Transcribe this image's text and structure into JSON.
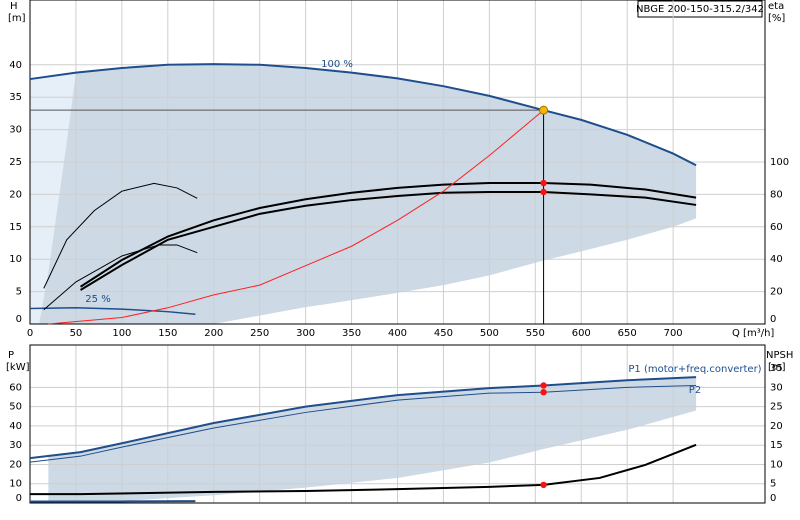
{
  "chart_data": [
    {
      "type": "line",
      "title": "NBGE 200-150-315.2/342",
      "y_label": "H",
      "y_unit": "[m]",
      "y2_label": "eta",
      "y2_unit": "[%]",
      "x_label": "Q [m³/h]",
      "xlim": [
        0,
        800
      ],
      "xticks": [
        0,
        50,
        100,
        150,
        200,
        250,
        300,
        350,
        400,
        450,
        500,
        550,
        600,
        650,
        700
      ],
      "ylim": [
        0,
        50
      ],
      "yticks": [
        0,
        5,
        10,
        15,
        20,
        25,
        30,
        35,
        40
      ],
      "y2lim": [
        0,
        200
      ],
      "y2ticks": [
        0,
        20,
        40,
        60,
        80,
        100
      ],
      "grid": true,
      "duty_point": {
        "x": 559,
        "y": 33,
        "color": "#f5b800"
      },
      "bands": [
        {
          "color": "#e6eef7",
          "x": [
            0,
            50
          ],
          "upper": [
            37.8,
            38.8
          ],
          "lower": [
            0,
            0
          ]
        },
        {
          "color": "#cdd9e5",
          "x": [
            10,
            20,
            30,
            40,
            50,
            100,
            200,
            300,
            320,
            400,
            450,
            500,
            559,
            600,
            650,
            700,
            725
          ],
          "upper": [
            0,
            8,
            18,
            28,
            38.8,
            39.5,
            40.1,
            39.5,
            39.3,
            37.9,
            36.7,
            35.2,
            33,
            31.5,
            29.2,
            26.3,
            24.5
          ],
          "lower": [
            0,
            0,
            0,
            0,
            0,
            0,
            0,
            2.6,
            3,
            4.8,
            6,
            7.5,
            9.8,
            11.2,
            13,
            15,
            16.3
          ]
        }
      ],
      "series": [
        {
          "name": "100 %",
          "color": "#1f4e8c",
          "width": 2,
          "marked": false,
          "x": [
            0,
            50,
            100,
            150,
            200,
            250,
            300,
            350,
            400,
            450,
            500,
            559,
            600,
            650,
            700,
            725
          ],
          "values": [
            37.8,
            38.8,
            39.5,
            40,
            40.1,
            40,
            39.5,
            38.8,
            37.9,
            36.7,
            35.2,
            33,
            31.5,
            29.2,
            26.3,
            24.5
          ]
        },
        {
          "name": "25 %",
          "color": "#1f4e8c",
          "width": 1.5,
          "marked": false,
          "x": [
            0,
            50,
            100,
            150,
            180
          ],
          "values": [
            2.4,
            2.5,
            2.3,
            1.9,
            1.5
          ]
        },
        {
          "color": "#000000",
          "width": 2,
          "axis": "y2",
          "marked": true,
          "x": [
            55,
            100,
            150,
            200,
            250,
            300,
            350,
            400,
            450,
            500,
            559,
            610,
            670,
            725
          ],
          "values": [
            23,
            39.5,
            54,
            64,
            71.6,
            77,
            81,
            84,
            86,
            87,
            87,
            86,
            83,
            78
          ]
        },
        {
          "color": "#000000",
          "width": 2,
          "axis": "y2",
          "marked": true,
          "x": [
            55,
            100,
            150,
            200,
            250,
            300,
            350,
            400,
            450,
            500,
            559,
            610,
            670,
            725
          ],
          "values": [
            21,
            36.4,
            52,
            60,
            68,
            73,
            76.5,
            79,
            81,
            81.5,
            81.5,
            80,
            78,
            73.5
          ]
        },
        {
          "color": "#000000",
          "width": 1,
          "marked": false,
          "x": [
            15,
            40,
            70,
            100,
            135,
            160,
            182
          ],
          "values": [
            5.5,
            13,
            17.5,
            20.5,
            21.7,
            21,
            19.4
          ]
        },
        {
          "color": "#000000",
          "width": 1,
          "marked": false,
          "x": [
            15,
            50,
            100,
            140,
            160,
            182
          ],
          "values": [
            2.2,
            6.5,
            10.5,
            12.2,
            12.2,
            11
          ]
        },
        {
          "color": "#ff2020",
          "width": 1,
          "marked": false,
          "x": [
            20,
            100,
            150,
            200,
            250,
            300,
            350,
            400,
            450,
            500,
            559
          ],
          "values": [
            0,
            1,
            2.5,
            4.5,
            6,
            9,
            12,
            16,
            20.5,
            26,
            33
          ]
        }
      ]
    },
    {
      "type": "line",
      "y_label": "P",
      "y_unit": "[kW]",
      "y2_label": "NPSH",
      "y2_unit": "[m]",
      "xlim": [
        0,
        800
      ],
      "xticks": [
        0,
        50,
        100,
        150,
        200,
        250,
        300,
        350,
        400,
        450,
        500,
        550,
        600,
        650,
        700
      ],
      "ylim": [
        0,
        82
      ],
      "yticks": [
        0,
        10,
        20,
        30,
        40,
        50,
        60
      ],
      "y2lim": [
        0,
        41
      ],
      "y2ticks": [
        0,
        5,
        10,
        15,
        20,
        25,
        30,
        35
      ],
      "grid": true,
      "bands": [
        {
          "color": "#cdd9e5",
          "x": [
            20,
            40,
            55,
            100,
            200,
            300,
            400,
            500,
            559,
            650,
            725
          ],
          "upper": [
            24.5,
            25.5,
            26.4,
            31,
            41.5,
            50,
            56,
            59.6,
            61,
            63.7,
            65.3
          ],
          "lower": [
            0,
            0,
            0,
            1,
            4,
            8,
            13,
            21,
            28,
            38,
            48
          ]
        }
      ],
      "series": [
        {
          "name": "P1 (motor+freq.converter)",
          "color": "#1f4e8c",
          "width": 2,
          "marked": true,
          "x": [
            0,
            55,
            100,
            200,
            300,
            400,
            500,
            559,
            650,
            725
          ],
          "values": [
            23.3,
            26.4,
            31,
            41.5,
            50,
            56,
            59.6,
            61,
            63.7,
            65.3
          ]
        },
        {
          "name": "P2",
          "color": "#1f4e8c",
          "width": 1,
          "marked": true,
          "x": [
            0,
            55,
            100,
            200,
            300,
            400,
            500,
            559,
            650,
            725
          ],
          "values": [
            21.2,
            24.3,
            29,
            38.9,
            47,
            53.4,
            57,
            57.5,
            60,
            61
          ]
        },
        {
          "color": "#000000",
          "width": 2,
          "axis": "y2",
          "marked": true,
          "x": [
            0,
            55,
            200,
            300,
            400,
            500,
            559,
            620,
            670,
            725
          ],
          "values": [
            2.3,
            2.3,
            2.9,
            3.1,
            3.6,
            4.2,
            4.7,
            6.5,
            9.9,
            15.1
          ]
        },
        {
          "color": "#1f4e8c",
          "width": 2,
          "marked": false,
          "x": [
            0,
            100,
            180
          ],
          "values": [
            0.8,
            0.8,
            1
          ]
        }
      ]
    }
  ]
}
